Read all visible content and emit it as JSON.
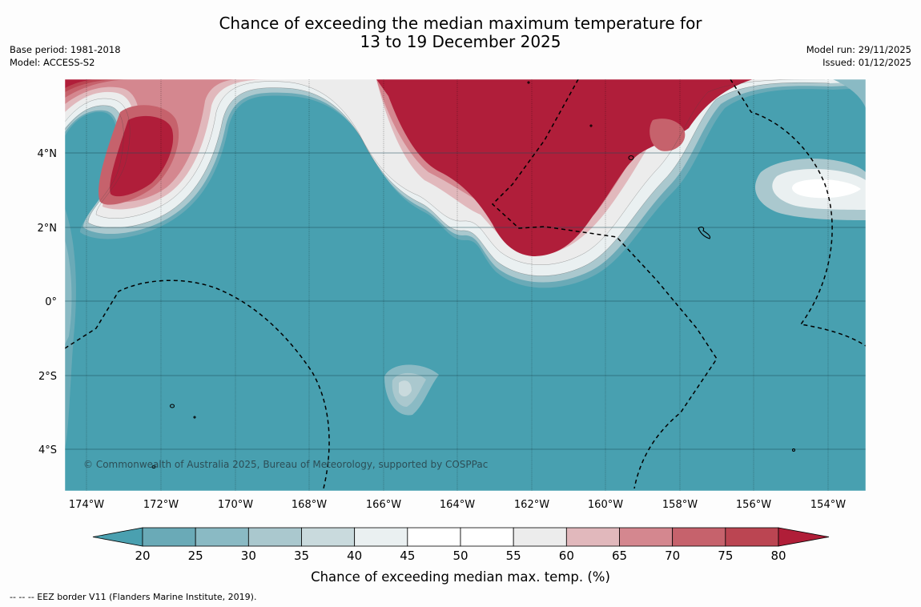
{
  "title_line1": "Chance of exceeding the median maximum temperature for",
  "title_line2": "13 to 19 December 2025",
  "meta_left": [
    "Base period: 1981-2018",
    "Model: ACCESS-S2"
  ],
  "meta_right": [
    "Model run: 29/11/2025",
    "Issued: 01/12/2025"
  ],
  "copyright": "© Commonwealth of Australia 2025, Bureau of Meteorology, supported by COSPPac",
  "lon_labels": [
    "174°W",
    "172°W",
    "170°W",
    "168°W",
    "166°W",
    "164°W",
    "162°W",
    "160°W",
    "158°W",
    "156°W",
    "154°W"
  ],
  "lat_labels": [
    "4°N",
    "2°N",
    "0°",
    "2°S",
    "4°S"
  ],
  "colorbar": {
    "title": "Chance of exceeding median max. temp. (%)",
    "ticks": [
      "20",
      "25",
      "30",
      "35",
      "40",
      "45",
      "50",
      "55",
      "60",
      "65",
      "70",
      "75",
      "80"
    ],
    "colors": {
      "below": "#4aa0b0",
      "bins": [
        "#6aaab7",
        "#8abac4",
        "#aac8ce",
        "#c9dadd",
        "#eaf0f1",
        "#ffffff",
        "#ffffff",
        "#ececec",
        "#e1b8bc",
        "#d4878f",
        "#c6626c",
        "#bb4552"
      ],
      "above": "#b01e38"
    }
  },
  "colors": {
    "cool": "#48a0b0",
    "warm": "#b01e3a",
    "ocean_base": "#48a0b0"
  },
  "footnote": "-- -- -- EEZ border V11 (Flanders Marine Institute, 2019)."
}
